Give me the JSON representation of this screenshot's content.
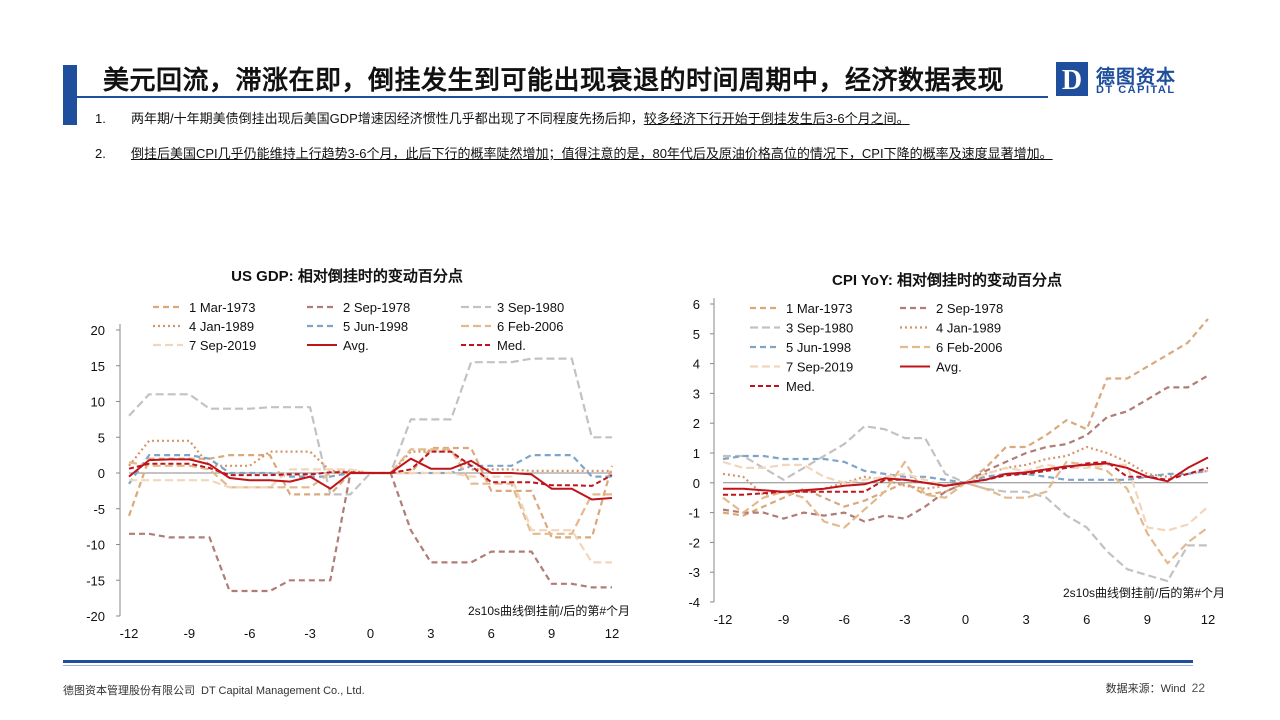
{
  "page": {
    "title": "美元回流，滞涨在即，倒挂发生到可能出现衰退的时间周期中，经济数据表现",
    "logo_cn": "德图资本",
    "logo_en": "DT CAPITAL",
    "logo_mark": "D",
    "accent": "#1f4e9c"
  },
  "bullets": [
    {
      "num": "1.",
      "text": "两年期/十年期美债倒挂出现后美国GDP增速因经济惯性几乎都出现了不同程度先扬后抑，",
      "underlined": "较多经济下行开始于倒挂发生后3-6个月之间。"
    },
    {
      "num": "2.",
      "text": "",
      "underlined": "倒挂后美国CPI几乎仍能维持上行趋势3-6个月，此后下行的概率陡然增加；值得注意的是，80年代后及原油价格高位的情况下，CPI下降的概率及速度显著增加。"
    }
  ],
  "chart_data": [
    {
      "type": "line",
      "title": "US GDP: 相对倒挂时的变动百分点",
      "annotation": "2s10s曲线倒挂前/后的第#个月",
      "x": [
        -12,
        -11,
        -10,
        -9,
        -8,
        -7,
        -6,
        -5,
        -4,
        -3,
        -2,
        -1,
        0,
        1,
        2,
        3,
        4,
        5,
        6,
        7,
        8,
        9,
        10,
        11,
        12
      ],
      "xticks": [
        -12,
        -9,
        -6,
        -3,
        0,
        3,
        6,
        9,
        12
      ],
      "xtick_labels": [
        "-12",
        "-9",
        "-6",
        "-3",
        "0",
        "3",
        "6",
        "9",
        "12"
      ],
      "ylim": [
        -20,
        20
      ],
      "yticks": [
        20,
        15,
        10,
        5,
        0,
        -5,
        -10,
        -15,
        -20
      ],
      "ytick_labels": [
        "20",
        "15",
        "10",
        "5",
        "0",
        "-5",
        "-10",
        "-15",
        "-20"
      ],
      "grid": false,
      "legend_position": "top",
      "legend_cols": 3,
      "series": [
        {
          "name": "1 Mar-1973",
          "color": "#d9a97c",
          "dash": "6,4",
          "values": [
            -6,
            2,
            2,
            2,
            2,
            2.5,
            2.5,
            2.5,
            -3,
            -3,
            -3,
            0,
            0,
            0,
            0,
            3.5,
            3.5,
            3.5,
            -2.5,
            -2.5,
            -2.5,
            -9,
            -9,
            -9,
            1
          ]
        },
        {
          "name": "2 Sep-1978",
          "color": "#b07c76",
          "dash": "6,4",
          "values": [
            -8.5,
            -8.5,
            -9,
            -9,
            -9,
            -16.5,
            -16.5,
            -16.5,
            -15,
            -15,
            -15,
            0,
            0,
            0,
            -8,
            -12.5,
            -12.5,
            -12.5,
            -11,
            -11,
            -11,
            -15.5,
            -15.5,
            -16,
            -16
          ]
        },
        {
          "name": "3 Sep-1980",
          "color": "#c2c2c2",
          "dash": "8,4",
          "values": [
            8,
            11,
            11,
            11,
            9,
            9,
            9,
            9.2,
            9.2,
            9.2,
            -3,
            -3,
            0,
            0,
            7.5,
            7.5,
            7.5,
            15.5,
            15.5,
            15.5,
            16,
            16,
            16,
            5,
            5
          ]
        },
        {
          "name": "4 Jan-1989",
          "color": "#d4956a",
          "dash": "2,3",
          "values": [
            1,
            4.5,
            4.5,
            4.5,
            1,
            1,
            1,
            3,
            3,
            3,
            0.3,
            0.3,
            0,
            0,
            3,
            3,
            3,
            0.5,
            0.5,
            0.5,
            0.3,
            0.3,
            0.3,
            0.3,
            0.3
          ]
        },
        {
          "name": "5 Jun-1998",
          "color": "#7ea4c8",
          "dash": "6,4",
          "values": [
            -1.5,
            2.5,
            2.5,
            2.5,
            2,
            0,
            0,
            0,
            -0.5,
            -0.5,
            -0.5,
            0,
            0,
            0,
            0,
            0,
            0,
            1,
            1,
            1,
            2.5,
            2.5,
            2.5,
            -0.5,
            -0.5
          ]
        },
        {
          "name": "6 Feb-2006",
          "color": "#e3b98e",
          "dash": "8,4",
          "values": [
            1.5,
            1,
            1,
            1,
            0.5,
            -2,
            -2,
            -2,
            -2,
            -2,
            0,
            0,
            0,
            0,
            3.3,
            3.3,
            3.3,
            -1.5,
            -1.5,
            -1.5,
            -8.5,
            -8.5,
            -8.5,
            -3,
            -3
          ]
        },
        {
          "name": "7 Sep-2019",
          "color": "#f2d6bb",
          "dash": "8,4",
          "values": [
            -1,
            -1,
            -1,
            -1,
            -1,
            -2,
            -2,
            -2,
            0.5,
            0.5,
            0.5,
            0.5,
            0,
            0,
            0,
            0,
            0,
            -0.5,
            -0.5,
            -0.5,
            -8,
            -8,
            -8,
            -12.5,
            -12.5
          ]
        },
        {
          "name": "Avg.",
          "color": "#c0141b",
          "dash": "",
          "width": 2,
          "values": [
            -0.5,
            1.8,
            1.9,
            1.9,
            1.2,
            -0.7,
            -1,
            -1,
            -1.2,
            -0.5,
            -2.2,
            0,
            0,
            0,
            2,
            0.6,
            0.6,
            1.7,
            0,
            0,
            -0.2,
            -2.2,
            -2.2,
            -3.7,
            -3.5
          ]
        },
        {
          "name": "Med.",
          "color": "#c0141b",
          "dash": "5,3",
          "width": 2,
          "values": [
            0.6,
            1.3,
            1.3,
            1.3,
            0.7,
            -0.3,
            -0.3,
            -0.3,
            -0.2,
            -0.2,
            0.1,
            0.1,
            0,
            0,
            0.5,
            3,
            3,
            1,
            -1.3,
            -1.3,
            -1.3,
            -1.7,
            -1.7,
            -1.8,
            -0.3
          ]
        }
      ]
    },
    {
      "type": "line",
      "title": "CPI YoY: 相对倒挂时的变动百分点",
      "annotation": "2s10s曲线倒挂前/后的第#个月",
      "x": [
        -12,
        -11,
        -10,
        -9,
        -8,
        -7,
        -6,
        -5,
        -4,
        -3,
        -2,
        -1,
        0,
        1,
        2,
        3,
        4,
        5,
        6,
        7,
        8,
        9,
        10,
        11,
        12
      ],
      "xticks": [
        -12,
        -9,
        -6,
        -3,
        0,
        3,
        6,
        9,
        12
      ],
      "xtick_labels": [
        "-12",
        "-9",
        "-6",
        "-3",
        "0",
        "3",
        "6",
        "9",
        "12"
      ],
      "ylim": [
        -4,
        6
      ],
      "yticks": [
        6,
        5,
        4,
        3,
        2,
        1,
        0,
        -1,
        -2,
        -3,
        -4
      ],
      "ytick_labels": [
        "6",
        "5",
        "4",
        "3",
        "2",
        "1",
        "0",
        "-1",
        "-2",
        "-3",
        "-4"
      ],
      "grid": false,
      "legend_position": "top",
      "legend_cols": 2,
      "series": [
        {
          "name": "1 Mar-1973",
          "color": "#d9a97c",
          "dash": "6,4",
          "values": [
            -1,
            -1.1,
            -0.8,
            -0.5,
            -0.2,
            -0.5,
            -0.8,
            -0.6,
            -0.3,
            0,
            -0.4,
            -0.3,
            0,
            0.5,
            1.2,
            1.2,
            1.6,
            2.1,
            1.8,
            3.5,
            3.5,
            3.9,
            4.3,
            4.7,
            5.5
          ]
        },
        {
          "name": "2 Sep-1978",
          "color": "#b07c76",
          "dash": "6,4",
          "values": [
            -0.9,
            -1,
            -1,
            -1.2,
            -1,
            -1.1,
            -1,
            -1.3,
            -1.1,
            -1.2,
            -0.8,
            -0.3,
            0,
            0.4,
            0.7,
            1,
            1.2,
            1.3,
            1.6,
            2.2,
            2.4,
            2.8,
            3.2,
            3.2,
            3.6
          ]
        },
        {
          "name": "3 Sep-1980",
          "color": "#c2c2c2",
          "dash": "8,4",
          "values": [
            0.9,
            0.9,
            0.5,
            0.1,
            0.5,
            0.9,
            1.3,
            1.9,
            1.8,
            1.5,
            1.5,
            0.3,
            0,
            -0.2,
            -0.3,
            -0.3,
            -0.5,
            -1.1,
            -1.5,
            -2.3,
            -2.9,
            -3.1,
            -3.3,
            -2.1,
            -2.1
          ]
        },
        {
          "name": "4 Jan-1989",
          "color": "#d4956a",
          "dash": "2,3",
          "values": [
            0.3,
            0.2,
            -0.4,
            -0.3,
            -0.3,
            -0.2,
            0,
            0.2,
            0.1,
            -0.1,
            -0.2,
            -0.1,
            0,
            0.3,
            0.5,
            0.6,
            0.8,
            0.9,
            1.2,
            1,
            0.7,
            0.3,
            0.2,
            0.3,
            0.4
          ]
        },
        {
          "name": "5 Jun-1998",
          "color": "#7ea4c8",
          "dash": "6,4",
          "values": [
            0.8,
            0.9,
            0.9,
            0.8,
            0.8,
            0.8,
            0.7,
            0.4,
            0.3,
            0.2,
            0.2,
            0.1,
            0,
            0.2,
            0.3,
            0.3,
            0.2,
            0.1,
            0.1,
            0.1,
            0.1,
            0.2,
            0.3,
            0.3,
            0.4
          ]
        },
        {
          "name": "6 Feb-2006",
          "color": "#e3b98e",
          "dash": "8,4",
          "values": [
            -0.5,
            -1,
            -0.5,
            -0.3,
            -0.5,
            -1.3,
            -1.5,
            -0.9,
            -0.3,
            0.7,
            -0.4,
            -0.5,
            0,
            -0.2,
            -0.5,
            -0.5,
            -0.3,
            0.7,
            0.6,
            0.4,
            -0.2,
            -1.7,
            -2.7,
            -2,
            -1.5
          ]
        },
        {
          "name": "7 Sep-2019",
          "color": "#f2d6bb",
          "dash": "8,4",
          "values": [
            0.7,
            0.5,
            0.5,
            0.6,
            0.6,
            0.2,
            0,
            0.1,
            0.2,
            0.3,
            0.1,
            -0.1,
            0,
            0.3,
            0.5,
            0.4,
            0.6,
            0.5,
            0.5,
            0.6,
            0.6,
            -1.5,
            -1.6,
            -1.4,
            -0.8
          ]
        },
        {
          "name": "Avg.",
          "color": "#c0141b",
          "dash": "",
          "width": 2,
          "values": [
            -0.2,
            -0.2,
            -0.25,
            -0.3,
            -0.25,
            -0.2,
            -0.1,
            -0.05,
            0.15,
            0.1,
            0,
            -0.1,
            0,
            0.1,
            0.3,
            0.35,
            0.45,
            0.55,
            0.6,
            0.65,
            0.5,
            0.2,
            0.05,
            0.5,
            0.85
          ]
        },
        {
          "name": "Med.",
          "color": "#c0141b",
          "dash": "5,3",
          "width": 2,
          "values": [
            -0.4,
            -0.4,
            -0.35,
            -0.3,
            -0.3,
            -0.3,
            -0.3,
            -0.3,
            0.1,
            0.1,
            0,
            -0.1,
            0,
            0.1,
            0.25,
            0.3,
            0.4,
            0.5,
            0.65,
            0.7,
            0.2,
            0.2,
            0.1,
            0.3,
            0.5
          ]
        }
      ]
    }
  ],
  "footer": {
    "company_cn": "德图资本管理股份有限公司",
    "company_en": "DT Capital Management Co., Ltd.",
    "source": "数据来源：Wind",
    "page_number": "22"
  }
}
